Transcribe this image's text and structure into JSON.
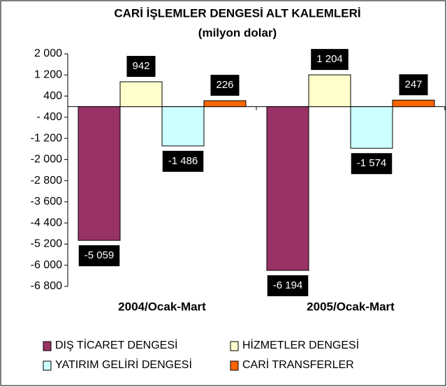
{
  "chart_data": {
    "type": "bar",
    "title": "CARİ İŞLEMLER DENGESİ ALT KALEMLERİ",
    "subtitle": "(milyon dolar)",
    "categories": [
      "2004/Ocak-Mart",
      "2005/Ocak-Mart"
    ],
    "series": [
      {
        "name": "DIŞ TİCARET DENGESİ",
        "color": "#993366",
        "values": [
          -5059,
          -6194
        ],
        "value_labels": [
          "-5 059",
          "-6 194"
        ]
      },
      {
        "name": "HİZMETLER DENGESİ",
        "color": "#ffffcc",
        "values": [
          942,
          1204
        ],
        "value_labels": [
          "942",
          "1 204"
        ]
      },
      {
        "name": "YATIRIM GELİRİ DENGESİ",
        "color": "#ccffff",
        "values": [
          -1486,
          -1574
        ],
        "value_labels": [
          "-1 486",
          "-1 574"
        ]
      },
      {
        "name": "CARİ TRANSFERLER",
        "color": "#ff6600",
        "values": [
          226,
          247
        ],
        "value_labels": [
          "226",
          "247"
        ]
      }
    ],
    "ylim": [
      -6800,
      2000
    ],
    "yticks": [
      {
        "value": 2000,
        "label": "2 000"
      },
      {
        "value": 1200,
        "label": "1 200"
      },
      400,
      {
        "value": -400,
        "label": "- 400"
      },
      {
        "value": -1200,
        "label": "-1 200"
      },
      {
        "value": -2000,
        "label": "-2 000"
      },
      {
        "value": -2800,
        "label": "-2 800"
      },
      {
        "value": -3600,
        "label": "-3 600"
      },
      {
        "value": -4400,
        "label": "-4 400"
      },
      {
        "value": -5200,
        "label": "-5 200"
      },
      {
        "value": -6000,
        "label": "-6 000"
      },
      {
        "value": -6800,
        "label": "-6 800"
      }
    ],
    "grid": false
  }
}
